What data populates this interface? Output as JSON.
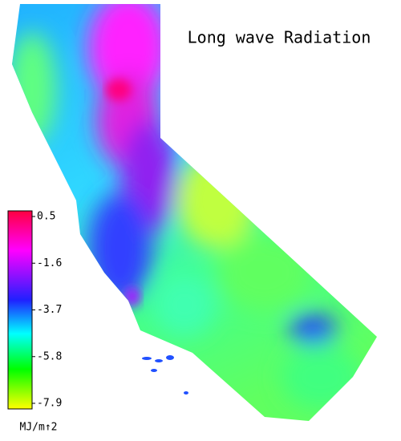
{
  "title": "Long wave Radiation",
  "colorbar": {
    "clim": [
      -7.9,
      0.5
    ],
    "ticks": [
      0.5,
      -1.6,
      -3.7,
      -5.8,
      -7.9
    ],
    "unit": "MJ/m↑2"
  }
}
